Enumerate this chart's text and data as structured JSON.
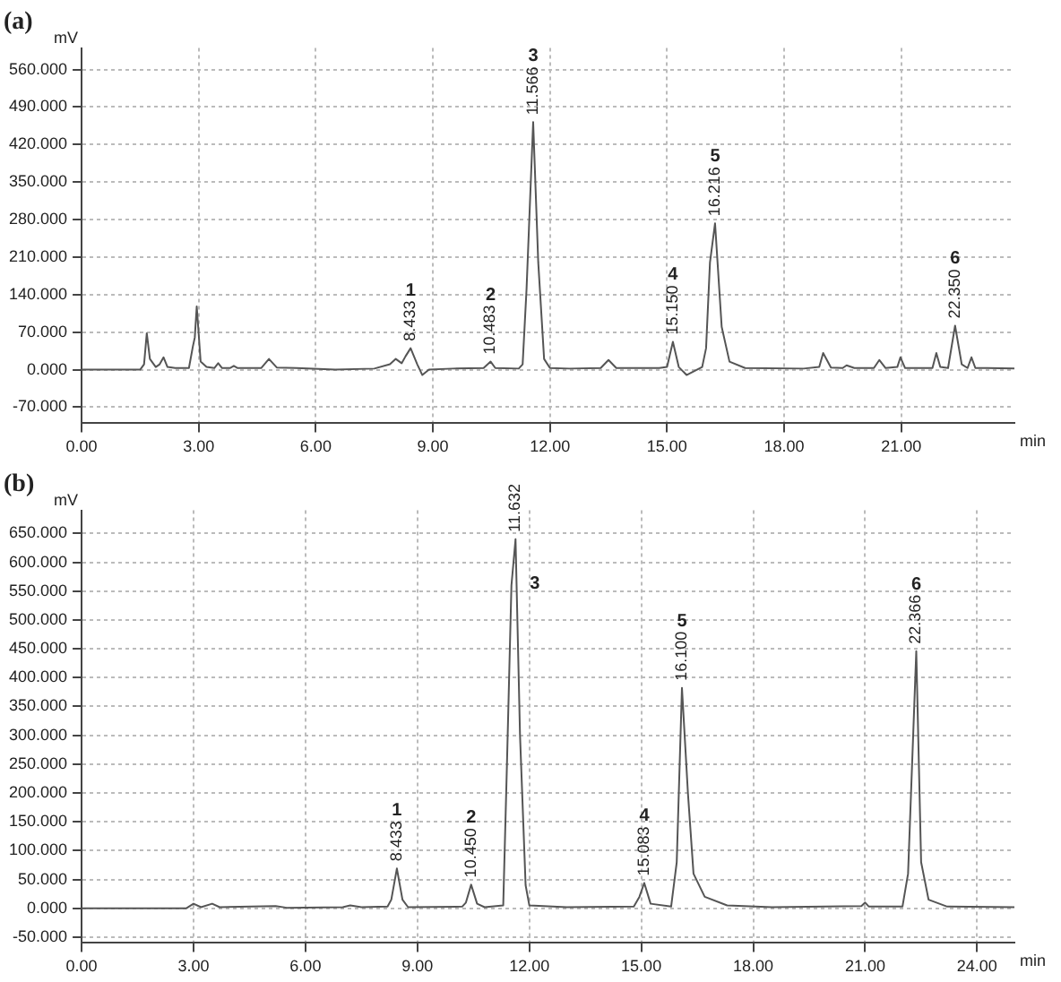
{
  "chart_data": [
    {
      "type": "line",
      "title": "(a)",
      "xlabel": "min",
      "ylabel": "mV",
      "grid": true,
      "legend": false,
      "marker": "none",
      "line_style": "solid",
      "xlim": [
        0,
        23.9
      ],
      "ylim": [
        -100,
        600
      ],
      "xticks": [
        {
          "value": 0,
          "label": "0.00"
        },
        {
          "value": 3,
          "label": "3.00"
        },
        {
          "value": 6,
          "label": "6.00"
        },
        {
          "value": 9,
          "label": "9.00"
        },
        {
          "value": 12,
          "label": "12.00"
        },
        {
          "value": 15,
          "label": "15.00"
        },
        {
          "value": 18,
          "label": "18.00"
        },
        {
          "value": 21,
          "label": "21.00"
        }
      ],
      "yticks": [
        {
          "value": -70,
          "label": "-70.000"
        },
        {
          "value": 0,
          "label": "0.000"
        },
        {
          "value": 70,
          "label": "70.000"
        },
        {
          "value": 140,
          "label": "140.000"
        },
        {
          "value": 210,
          "label": "210.000"
        },
        {
          "value": 280,
          "label": "280.000"
        },
        {
          "value": 350,
          "label": "350.000"
        },
        {
          "value": 420,
          "label": "420.000"
        },
        {
          "value": 490,
          "label": "490.000"
        },
        {
          "value": 560,
          "label": "560.000"
        }
      ],
      "series": [
        {
          "color": "#555555",
          "x": [
            0,
            1.5,
            1.6,
            1.67,
            1.75,
            1.9,
            2.0,
            2.1,
            2.2,
            2.4,
            2.75,
            2.85,
            2.9,
            2.95,
            3.05,
            3.2,
            3.4,
            3.5,
            3.6,
            3.8,
            3.9,
            4.0,
            4.6,
            4.8,
            5.0,
            5.5,
            6.5,
            7.5,
            7.9,
            8.05,
            8.2,
            8.3,
            8.43,
            8.6,
            8.73,
            8.9,
            9.5,
            10.3,
            10.48,
            10.6,
            11.2,
            11.3,
            11.4,
            11.57,
            11.7,
            11.85,
            12.0,
            12.5,
            13.3,
            13.5,
            13.7,
            14.8,
            15.0,
            15.15,
            15.3,
            15.5,
            15.9,
            16.0,
            16.1,
            16.23,
            16.4,
            16.6,
            17.0,
            18.5,
            18.9,
            19.0,
            19.2,
            19.5,
            19.6,
            19.8,
            20.3,
            20.44,
            20.6,
            20.9,
            20.98,
            21.1,
            21.8,
            21.9,
            22.0,
            22.2,
            22.38,
            22.55,
            22.7,
            22.8,
            22.9,
            23.2,
            23.9
          ],
          "values": [
            0,
            0,
            10,
            68,
            20,
            5,
            10,
            23,
            5,
            3,
            3,
            43,
            60,
            118,
            15,
            5,
            3,
            12,
            3,
            3,
            7,
            3,
            3,
            20,
            4,
            3,
            0,
            2,
            10,
            20,
            12,
            25,
            40,
            10,
            -10,
            0,
            2,
            3,
            15,
            3,
            2,
            10,
            150,
            462,
            200,
            20,
            3,
            2,
            3,
            18,
            3,
            3,
            5,
            52,
            5,
            -10,
            5,
            40,
            200,
            273,
            80,
            15,
            3,
            2,
            5,
            31,
            4,
            3,
            8,
            3,
            3,
            18,
            3,
            5,
            23,
            3,
            3,
            31,
            5,
            3,
            82,
            10,
            3,
            23,
            3,
            3,
            2
          ]
        }
      ],
      "annotations": [
        "1",
        {
          "text": "8.433",
          "x": 8.43,
          "y": 40
        },
        "2",
        {
          "text": "10.483",
          "x": 10.48,
          "y": 15
        },
        "3",
        {
          "text": "11.566",
          "x": 11.57,
          "y": 462
        },
        "4",
        {
          "text": "15.150",
          "x": 15.15,
          "y": 52
        },
        "5",
        {
          "text": "16.216",
          "x": 16.23,
          "y": 273
        },
        "6",
        {
          "text": "22.350",
          "x": 22.38,
          "y": 82
        }
      ]
    },
    {
      "type": "line",
      "title": "(b)",
      "xlabel": "min",
      "ylabel": "mV",
      "grid": true,
      "legend": false,
      "marker": "none",
      "line_style": "solid",
      "xlim": [
        0,
        25
      ],
      "ylim": [
        -60,
        690
      ],
      "xticks": [
        {
          "value": 0,
          "label": "0.00"
        },
        {
          "value": 3,
          "label": "3.00"
        },
        {
          "value": 6,
          "label": "6.00"
        },
        {
          "value": 9,
          "label": "9.00"
        },
        {
          "value": 12,
          "label": "12.00"
        },
        {
          "value": 15,
          "label": "15.00"
        },
        {
          "value": 18,
          "label": "18.00"
        },
        {
          "value": 21,
          "label": "21.00"
        },
        {
          "value": 24,
          "label": "24.00"
        }
      ],
      "yticks": [
        {
          "value": -50,
          "label": "-50.000"
        },
        {
          "value": 0,
          "label": "0.000"
        },
        {
          "value": 50,
          "label": "50.000"
        },
        {
          "value": 100,
          "label": "100.000"
        },
        {
          "value": 150,
          "label": "150.000"
        },
        {
          "value": 200,
          "label": "200.000"
        },
        {
          "value": 250,
          "label": "250.000"
        },
        {
          "value": 300,
          "label": "300.000"
        },
        {
          "value": 350,
          "label": "350.000"
        },
        {
          "value": 400,
          "label": "400.000"
        },
        {
          "value": 450,
          "label": "450.000"
        },
        {
          "value": 500,
          "label": "500.000"
        },
        {
          "value": 550,
          "label": "550.000"
        },
        {
          "value": 600,
          "label": "600.000"
        },
        {
          "value": 650,
          "label": "650.000"
        }
      ],
      "series": [
        {
          "color": "#555555",
          "x": [
            0,
            2.8,
            3.0,
            3.2,
            3.5,
            3.7,
            5.2,
            5.5,
            7.0,
            7.2,
            7.5,
            8.2,
            8.3,
            8.45,
            8.6,
            8.75,
            10.2,
            10.3,
            10.44,
            10.6,
            10.8,
            11.3,
            11.4,
            11.52,
            11.63,
            11.75,
            11.9,
            12.0,
            13.0,
            14.8,
            14.95,
            15.08,
            15.25,
            15.8,
            15.95,
            16.09,
            16.25,
            16.4,
            16.7,
            17.3,
            18.5,
            20.9,
            21.0,
            21.1,
            22.0,
            22.15,
            22.37,
            22.5,
            22.7,
            23.2,
            25.0
          ],
          "values": [
            0,
            0,
            8,
            2,
            8,
            2,
            4,
            1,
            2,
            5,
            2,
            3,
            15,
            69,
            15,
            2,
            3,
            10,
            41,
            8,
            2,
            5,
            250,
            560,
            640,
            300,
            40,
            5,
            2,
            3,
            20,
            44,
            8,
            3,
            80,
            382,
            200,
            60,
            20,
            5,
            2,
            4,
            10,
            3,
            3,
            60,
            446,
            80,
            15,
            3,
            2
          ]
        }
      ],
      "annotations": [
        "1",
        {
          "text": "8.433",
          "x": 8.45,
          "y": 69
        },
        "2",
        {
          "text": "10.450",
          "x": 10.44,
          "y": 41
        },
        "3",
        {
          "text": "11.632",
          "x": 11.63,
          "y": 640
        },
        "4",
        {
          "text": "15.083",
          "x": 15.08,
          "y": 44
        },
        "5",
        {
          "text": "16.100",
          "x": 16.09,
          "y": 382
        },
        "6",
        {
          "text": "22.366",
          "x": 22.37,
          "y": 446
        }
      ]
    }
  ]
}
